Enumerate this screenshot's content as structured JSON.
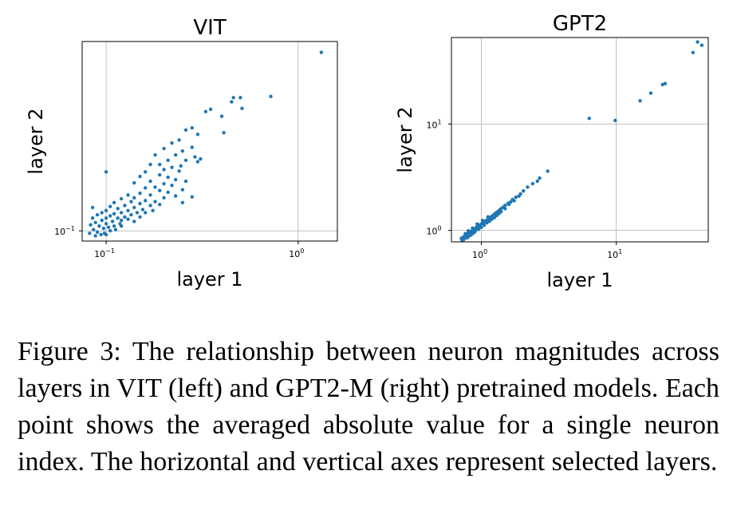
{
  "chart_data": [
    {
      "type": "scatter",
      "title": "VIT",
      "xlabel": "layer 1",
      "ylabel": "layer 2",
      "xscale": "log",
      "yscale": "log",
      "xlim": [
        0.075,
        1.6
      ],
      "ylim": [
        0.092,
        0.47
      ],
      "grid": true,
      "color": "#1f77b4",
      "xticks": [
        {
          "base": "10",
          "exp": "−1",
          "value": 0.1
        },
        {
          "base": "10",
          "exp": "0",
          "value": 1.0
        }
      ],
      "yticks": [
        {
          "base": "10",
          "exp": "−1",
          "value": 0.1
        }
      ],
      "points": [
        [
          1.32,
          0.43
        ],
        [
          0.72,
          0.3
        ],
        [
          0.5,
          0.297
        ],
        [
          0.46,
          0.297
        ],
        [
          0.45,
          0.287
        ],
        [
          0.51,
          0.272
        ],
        [
          0.35,
          0.27
        ],
        [
          0.33,
          0.265
        ],
        [
          0.4,
          0.255
        ],
        [
          0.28,
          0.232
        ],
        [
          0.26,
          0.228
        ],
        [
          0.3,
          0.22
        ],
        [
          0.41,
          0.223
        ],
        [
          0.24,
          0.21
        ],
        [
          0.28,
          0.198
        ],
        [
          0.22,
          0.205
        ],
        [
          0.25,
          0.192
        ],
        [
          0.2,
          0.196
        ],
        [
          0.23,
          0.186
        ],
        [
          0.29,
          0.183
        ],
        [
          0.26,
          0.178
        ],
        [
          0.18,
          0.186
        ],
        [
          0.21,
          0.178
        ],
        [
          0.245,
          0.17
        ],
        [
          0.19,
          0.172
        ],
        [
          0.22,
          0.168
        ],
        [
          0.17,
          0.172
        ],
        [
          0.2,
          0.165
        ],
        [
          0.24,
          0.163
        ],
        [
          0.31,
          0.18
        ],
        [
          0.3,
          0.176
        ],
        [
          0.16,
          0.162
        ],
        [
          0.19,
          0.158
        ],
        [
          0.21,
          0.155
        ],
        [
          0.23,
          0.152
        ],
        [
          0.26,
          0.15
        ],
        [
          0.15,
          0.156
        ],
        [
          0.17,
          0.15
        ],
        [
          0.2,
          0.147
        ],
        [
          0.22,
          0.145
        ],
        [
          0.18,
          0.143
        ],
        [
          0.25,
          0.14
        ],
        [
          0.1,
          0.162
        ],
        [
          0.14,
          0.148
        ],
        [
          0.16,
          0.142
        ],
        [
          0.19,
          0.139
        ],
        [
          0.21,
          0.137
        ],
        [
          0.15,
          0.136
        ],
        [
          0.17,
          0.134
        ],
        [
          0.2,
          0.131
        ],
        [
          0.23,
          0.133
        ],
        [
          0.13,
          0.134
        ],
        [
          0.14,
          0.131
        ],
        [
          0.16,
          0.128
        ],
        [
          0.18,
          0.127
        ],
        [
          0.12,
          0.13
        ],
        [
          0.135,
          0.127
        ],
        [
          0.15,
          0.125
        ],
        [
          0.17,
          0.123
        ],
        [
          0.19,
          0.124
        ],
        [
          0.28,
          0.132
        ],
        [
          0.25,
          0.126
        ],
        [
          0.11,
          0.126
        ],
        [
          0.125,
          0.123
        ],
        [
          0.14,
          0.121
        ],
        [
          0.155,
          0.119
        ],
        [
          0.13,
          0.118
        ],
        [
          0.145,
          0.116
        ],
        [
          0.115,
          0.12
        ],
        [
          0.105,
          0.122
        ],
        [
          0.12,
          0.116
        ],
        [
          0.135,
          0.114
        ],
        [
          0.16,
          0.116
        ],
        [
          0.175,
          0.118
        ],
        [
          0.085,
          0.121
        ],
        [
          0.1,
          0.118
        ],
        [
          0.11,
          0.115
        ],
        [
          0.125,
          0.112
        ],
        [
          0.095,
          0.116
        ],
        [
          0.105,
          0.113
        ],
        [
          0.115,
          0.111
        ],
        [
          0.09,
          0.114
        ],
        [
          0.1,
          0.111
        ],
        [
          0.12,
          0.109
        ],
        [
          0.13,
          0.11
        ],
        [
          0.085,
          0.111
        ],
        [
          0.095,
          0.109
        ],
        [
          0.108,
          0.108
        ],
        [
          0.118,
          0.106
        ],
        [
          0.088,
          0.107
        ],
        [
          0.1,
          0.106
        ],
        [
          0.11,
          0.104
        ],
        [
          0.092,
          0.104
        ],
        [
          0.103,
          0.103
        ],
        [
          0.083,
          0.105
        ],
        [
          0.097,
          0.102
        ],
        [
          0.086,
          0.101
        ],
        [
          0.105,
          0.1
        ],
        [
          0.09,
          0.099
        ],
        [
          0.098,
          0.098
        ],
        [
          0.112,
          0.101
        ],
        [
          0.082,
          0.098
        ],
        [
          0.094,
          0.097
        ],
        [
          0.088,
          0.096
        ],
        [
          0.1,
          0.097
        ],
        [
          0.12,
          0.104
        ],
        [
          0.14,
          0.108
        ],
        [
          0.15,
          0.112
        ]
      ]
    },
    {
      "type": "scatter",
      "title": "GPT2",
      "xlabel": "layer 1",
      "ylabel": "layer 2",
      "xscale": "log",
      "yscale": "log",
      "xlim": [
        0.6,
        48
      ],
      "ylim": [
        0.78,
        65
      ],
      "grid": true,
      "color": "#1f77b4",
      "xticks": [
        {
          "base": "10",
          "exp": "0",
          "value": 1
        },
        {
          "base": "10",
          "exp": "1",
          "value": 10
        }
      ],
      "yticks": [
        {
          "base": "10",
          "exp": "0",
          "value": 1
        },
        {
          "base": "10",
          "exp": "1",
          "value": 10
        }
      ],
      "points": [
        [
          43,
          55
        ],
        [
          40,
          59
        ],
        [
          37,
          47
        ],
        [
          23,
          24
        ],
        [
          22,
          23.5
        ],
        [
          18,
          19.5
        ],
        [
          15,
          16.5
        ],
        [
          9.8,
          10.8
        ],
        [
          6.3,
          11.3
        ],
        [
          3.1,
          3.6
        ],
        [
          2.6,
          2.9
        ],
        [
          2.4,
          2.75
        ],
        [
          2.2,
          2.55
        ],
        [
          2.05,
          2.35
        ],
        [
          1.95,
          2.2
        ],
        [
          1.8,
          2.05
        ],
        [
          1.7,
          1.95
        ],
        [
          1.65,
          1.85
        ],
        [
          1.58,
          1.8
        ],
        [
          1.5,
          1.72
        ],
        [
          1.45,
          1.65
        ],
        [
          1.4,
          1.6
        ],
        [
          1.36,
          1.55
        ],
        [
          1.32,
          1.5
        ],
        [
          1.28,
          1.46
        ],
        [
          1.25,
          1.42
        ],
        [
          1.22,
          1.38
        ],
        [
          1.19,
          1.35
        ],
        [
          1.16,
          1.32
        ],
        [
          1.13,
          1.28
        ],
        [
          1.1,
          1.25
        ],
        [
          1.07,
          1.22
        ],
        [
          1.04,
          1.19
        ],
        [
          1.01,
          1.16
        ],
        [
          0.98,
          1.13
        ],
        [
          0.95,
          1.1
        ],
        [
          0.92,
          1.07
        ],
        [
          0.9,
          1.04
        ],
        [
          0.87,
          1.01
        ],
        [
          0.84,
          0.98
        ],
        [
          0.82,
          0.95
        ],
        [
          0.79,
          0.93
        ],
        [
          0.77,
          0.9
        ],
        [
          0.75,
          0.88
        ],
        [
          0.73,
          0.86
        ],
        [
          0.71,
          0.84
        ],
        [
          1.3,
          1.38
        ],
        [
          1.2,
          1.28
        ],
        [
          1.1,
          1.18
        ],
        [
          1.0,
          1.07
        ],
        [
          0.9,
          0.98
        ],
        [
          0.85,
          0.92
        ],
        [
          0.8,
          0.87
        ],
        [
          1.4,
          1.5
        ],
        [
          1.5,
          1.6
        ],
        [
          1.25,
          1.32
        ],
        [
          1.15,
          1.22
        ],
        [
          1.05,
          1.12
        ],
        [
          0.95,
          1.02
        ],
        [
          0.88,
          0.95
        ],
        [
          0.93,
          1.15
        ],
        [
          1.02,
          1.24
        ],
        [
          1.12,
          1.34
        ],
        [
          0.86,
          1.05
        ],
        [
          0.8,
          0.99
        ],
        [
          0.76,
          0.93
        ],
        [
          1.6,
          1.75
        ],
        [
          1.75,
          1.9
        ],
        [
          1.35,
          1.44
        ],
        [
          1.18,
          1.27
        ],
        [
          0.97,
          1.06
        ],
        [
          0.83,
          0.9
        ],
        [
          0.74,
          0.82
        ],
        [
          0.72,
          0.8
        ],
        [
          0.78,
          0.85
        ],
        [
          2.7,
          3.1
        ],
        [
          1.9,
          2.1
        ]
      ]
    }
  ],
  "caption": "Figure 3:  The relationship between neuron magnitudes across layers in VIT (left) and GPT2-M (right) pretrained models. Each point shows the averaged absolute value for a single neuron index.  The horizontal and vertical axes represent selected layers."
}
